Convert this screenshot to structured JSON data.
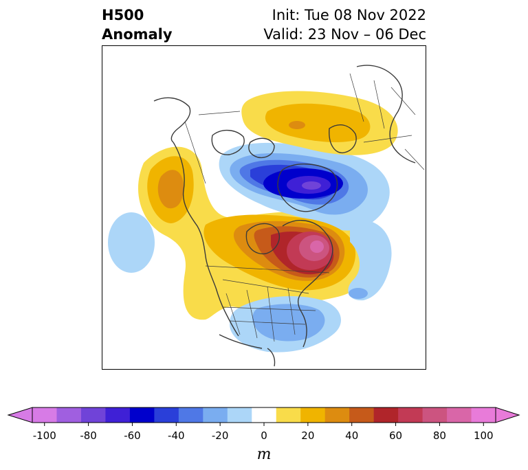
{
  "title": {
    "variable": "H500",
    "kind": "Anomaly",
    "init": "Init: Tue 08 Nov 2022",
    "valid": "Valid: 23 Nov – 06 Dec"
  },
  "colorbar": {
    "unit": "m",
    "ticks": [
      "-100",
      "-80",
      "-60",
      "-40",
      "-20",
      "0",
      "20",
      "40",
      "60",
      "80",
      "100"
    ],
    "colors": [
      "#d77be6",
      "#a05fe0",
      "#7043d8",
      "#3f20d6",
      "#0000cc",
      "#2a3fd9",
      "#4f78e6",
      "#7aadf0",
      "#acd6f8",
      "#ffffff",
      "#f9dc4a",
      "#f0b400",
      "#dd8c10",
      "#c65a1a",
      "#b0252a",
      "#c23a55",
      "#cc5480",
      "#d966a8",
      "#e87bd9"
    ],
    "min_color": "#d77be6",
    "max_color": "#e87bd9"
  }
}
